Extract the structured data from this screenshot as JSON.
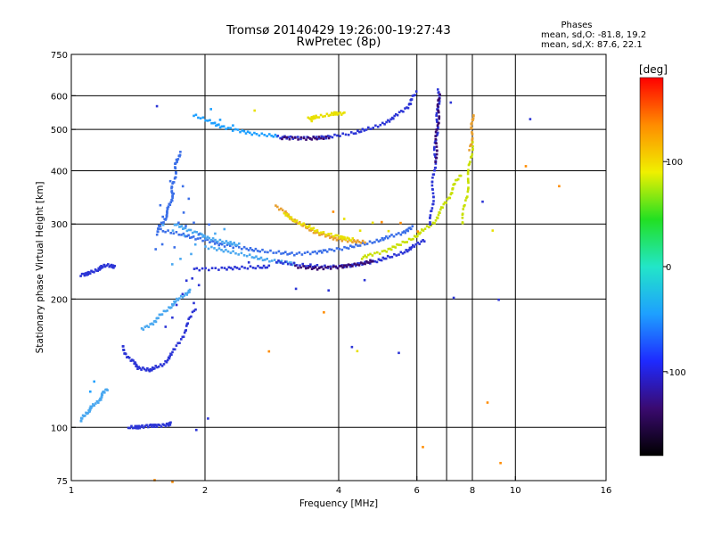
{
  "chart_data": {
    "type": "scatter",
    "title": "Tromsø 20140429 19:26:00-19:27:43",
    "subtitle": "RwPretec (8p)",
    "xlabel": "Frequency [MHz]",
    "ylabel": "Stationary phase Virtual Height [km]",
    "x_scale": "log",
    "y_scale": "log",
    "xlim": [
      1,
      16
    ],
    "ylim": [
      75,
      750
    ],
    "x_ticks": [
      1,
      2,
      4,
      6,
      8,
      10,
      16
    ],
    "y_ticks": [
      75,
      100,
      200,
      300,
      400,
      500,
      600,
      750
    ],
    "grid_x": [
      2,
      4,
      6,
      7,
      8,
      10
    ],
    "grid_y": [
      100,
      200,
      300,
      400,
      500,
      600
    ],
    "grid": true,
    "stats": {
      "heading": "Phases",
      "line_o": "mean, sd,O: -81.8, 19.2",
      "line_x": "mean, sd,X:  87.6, 22.1"
    },
    "colorbar": {
      "label": "[deg]",
      "min": -180,
      "max": 180,
      "ticks": [
        100,
        0,
        -100
      ],
      "colormap": [
        "#000000",
        "#3a0a70",
        "#1e2aff",
        "#1ea0ff",
        "#22e6c8",
        "#22e022",
        "#f0f000",
        "#ff8c00",
        "#ff0000"
      ]
    },
    "series": [
      {
        "kind": "trace",
        "color": "#2c35d6",
        "points": [
          [
            1.05,
            228
          ],
          [
            1.1,
            230
          ],
          [
            1.15,
            235
          ],
          [
            1.2,
            240
          ],
          [
            1.26,
            238
          ]
        ]
      },
      {
        "kind": "trace",
        "color": "#4aa8f0",
        "points": [
          [
            1.05,
            103
          ],
          [
            1.08,
            108
          ],
          [
            1.12,
            112
          ],
          [
            1.17,
            118
          ],
          [
            1.2,
            123
          ]
        ]
      },
      {
        "kind": "trace",
        "color": "#2c35d6",
        "points": [
          [
            1.35,
            100
          ],
          [
            1.42,
            100
          ],
          [
            1.5,
            101
          ],
          [
            1.6,
            101
          ],
          [
            1.68,
            102
          ]
        ]
      },
      {
        "kind": "trace",
        "color": "#2c35d6",
        "points": [
          [
            1.3,
            155
          ],
          [
            1.35,
            145
          ],
          [
            1.42,
            138
          ],
          [
            1.5,
            136
          ],
          [
            1.6,
            140
          ],
          [
            1.7,
            150
          ],
          [
            1.8,
            168
          ],
          [
            1.9,
            190
          ]
        ]
      },
      {
        "kind": "trace",
        "color": "#4aa8f0",
        "points": [
          [
            1.45,
            170
          ],
          [
            1.55,
            178
          ],
          [
            1.65,
            190
          ],
          [
            1.75,
            200
          ],
          [
            1.85,
            210
          ]
        ]
      },
      {
        "kind": "trace",
        "color": "#3b6fe8",
        "points": [
          [
            1.55,
            285
          ],
          [
            1.6,
            300
          ],
          [
            1.65,
            320
          ],
          [
            1.68,
            345
          ],
          [
            1.7,
            375
          ],
          [
            1.72,
            410
          ],
          [
            1.75,
            440
          ]
        ]
      },
      {
        "kind": "trace",
        "color": "#3b6fe8",
        "points": [
          [
            1.6,
            290
          ],
          [
            1.8,
            282
          ],
          [
            2.0,
            275
          ],
          [
            2.2,
            268
          ],
          [
            2.5,
            262
          ],
          [
            2.8,
            258
          ],
          [
            3.2,
            255
          ],
          [
            3.6,
            258
          ],
          [
            4.0,
            262
          ],
          [
            4.5,
            268
          ],
          [
            5.0,
            276
          ],
          [
            5.5,
            285
          ],
          [
            5.9,
            295
          ]
        ]
      },
      {
        "kind": "trace",
        "color": "#4aa8f0",
        "points": [
          [
            1.7,
            300
          ],
          [
            1.85,
            290
          ],
          [
            2.0,
            280
          ],
          [
            2.2,
            272
          ],
          [
            2.4,
            268
          ]
        ]
      },
      {
        "kind": "trace",
        "color": "#2c35d6",
        "points": [
          [
            1.9,
            235
          ],
          [
            2.2,
            236
          ],
          [
            2.5,
            237
          ],
          [
            2.8,
            238
          ]
        ]
      },
      {
        "kind": "trace",
        "color": "#4aa8f0",
        "points": [
          [
            2.0,
            265
          ],
          [
            2.3,
            258
          ],
          [
            2.6,
            250
          ],
          [
            2.9,
            245
          ],
          [
            3.2,
            242
          ]
        ]
      },
      {
        "kind": "trace",
        "color": "#2c35d6",
        "points": [
          [
            2.9,
            245
          ],
          [
            3.3,
            240
          ],
          [
            3.8,
            238
          ],
          [
            4.3,
            240
          ],
          [
            4.8,
            245
          ],
          [
            5.3,
            252
          ],
          [
            5.8,
            262
          ],
          [
            6.2,
            275
          ]
        ]
      },
      {
        "kind": "trace",
        "color": "#3a0a70",
        "points": [
          [
            3.2,
            238
          ],
          [
            3.6,
            236
          ],
          [
            4.0,
            238
          ],
          [
            4.4,
            241
          ],
          [
            4.8,
            246
          ]
        ]
      },
      {
        "kind": "trace",
        "color": "#c8e000",
        "points": [
          [
            4.5,
            250
          ],
          [
            5.0,
            258
          ],
          [
            5.5,
            268
          ],
          [
            6.0,
            282
          ],
          [
            6.5,
            300
          ],
          [
            6.9,
            330
          ],
          [
            7.2,
            360
          ],
          [
            7.5,
            390
          ]
        ]
      },
      {
        "kind": "trace",
        "color": "#e8a030",
        "points": [
          [
            2.9,
            330
          ],
          [
            3.1,
            312
          ],
          [
            3.3,
            298
          ],
          [
            3.6,
            285
          ],
          [
            3.9,
            278
          ],
          [
            4.2,
            274
          ],
          [
            4.6,
            272
          ]
        ]
      },
      {
        "kind": "trace",
        "color": "#e8e000",
        "points": [
          [
            3.0,
            318
          ],
          [
            3.3,
            300
          ],
          [
            3.6,
            288
          ],
          [
            4.0,
            280
          ],
          [
            4.3,
            276
          ]
        ]
      },
      {
        "kind": "trace",
        "color": "#1ea0ff",
        "points": [
          [
            1.9,
            540
          ],
          [
            2.1,
            515
          ],
          [
            2.3,
            500
          ],
          [
            2.6,
            488
          ],
          [
            2.9,
            482
          ]
        ]
      },
      {
        "kind": "trace",
        "color": "#2c35d6",
        "points": [
          [
            2.9,
            480
          ],
          [
            3.3,
            478
          ],
          [
            3.8,
            480
          ],
          [
            4.3,
            490
          ],
          [
            4.8,
            505
          ],
          [
            5.3,
            530
          ],
          [
            5.7,
            565
          ],
          [
            6.0,
            610
          ]
        ]
      },
      {
        "kind": "trace",
        "color": "#3a0a70",
        "points": [
          [
            3.0,
            478
          ],
          [
            3.4,
            476
          ],
          [
            3.8,
            478
          ]
        ]
      },
      {
        "kind": "trace",
        "color": "#e8e000",
        "points": [
          [
            3.4,
            530
          ],
          [
            3.6,
            535
          ],
          [
            3.9,
            545
          ],
          [
            4.1,
            545
          ]
        ]
      },
      {
        "kind": "trace",
        "color": "#2c35d6",
        "points": [
          [
            6.45,
            300
          ],
          [
            6.5,
            340
          ],
          [
            6.55,
            390
          ],
          [
            6.6,
            440
          ],
          [
            6.65,
            500
          ],
          [
            6.7,
            560
          ],
          [
            6.72,
            620
          ]
        ]
      },
      {
        "kind": "trace",
        "color": "#3a0a70",
        "points": [
          [
            6.6,
            420
          ],
          [
            6.65,
            480
          ],
          [
            6.7,
            540
          ],
          [
            6.75,
            600
          ]
        ]
      },
      {
        "kind": "trace",
        "color": "#c8e000",
        "points": [
          [
            7.6,
            300
          ],
          [
            7.75,
            350
          ],
          [
            7.9,
            410
          ],
          [
            8.0,
            470
          ]
        ]
      },
      {
        "kind": "trace",
        "color": "#e8a030",
        "points": [
          [
            7.9,
            450
          ],
          [
            8.0,
            500
          ],
          [
            8.0,
            540
          ]
        ]
      },
      {
        "kind": "scatter",
        "color": "#3b6fe8",
        "points": [
          [
            1.6,
            310
          ],
          [
            1.65,
            330
          ],
          [
            1.7,
            355
          ],
          [
            1.75,
            300
          ],
          [
            1.8,
            320
          ],
          [
            1.85,
            345
          ],
          [
            1.9,
            300
          ],
          [
            1.95,
            285
          ],
          [
            2.05,
            300
          ],
          [
            1.55,
            260
          ],
          [
            1.6,
            270
          ],
          [
            1.7,
            265
          ],
          [
            1.8,
            295
          ],
          [
            1.66,
            380
          ],
          [
            1.72,
            420
          ],
          [
            1.58,
            330
          ],
          [
            1.78,
            370
          ]
        ]
      },
      {
        "kind": "scatter",
        "color": "#4aa8f0",
        "points": [
          [
            1.62,
            300
          ],
          [
            1.7,
            290
          ],
          [
            1.8,
            280
          ],
          [
            1.9,
            270
          ],
          [
            2.1,
            285
          ],
          [
            2.2,
            290
          ],
          [
            1.75,
            250
          ],
          [
            1.85,
            255
          ],
          [
            1.68,
            240
          ]
        ]
      },
      {
        "kind": "scatter",
        "color": "#2c35d6",
        "points": [
          [
            1.62,
            172
          ],
          [
            1.68,
            180
          ],
          [
            1.72,
            195
          ],
          [
            1.78,
            205
          ],
          [
            1.82,
            220
          ],
          [
            1.88,
            225
          ],
          [
            1.95,
            215
          ],
          [
            1.9,
            195
          ]
        ]
      },
      {
        "kind": "scatter",
        "color": "#ff8c00",
        "points": [
          [
            1.55,
            75
          ],
          [
            1.7,
            75
          ],
          [
            2.8,
            150
          ],
          [
            3.9,
            320
          ],
          [
            5.0,
            305
          ],
          [
            5.5,
            300
          ],
          [
            6.0,
            288
          ],
          [
            8.6,
            115
          ],
          [
            9.2,
            82
          ],
          [
            10.5,
            410
          ],
          [
            12.5,
            370
          ],
          [
            3.7,
            185
          ],
          [
            6.2,
            90
          ]
        ]
      },
      {
        "kind": "scatter",
        "color": "#2c35d6",
        "points": [
          [
            1.55,
            570
          ],
          [
            1.9,
            98
          ],
          [
            2.02,
            105
          ],
          [
            2.5,
            245
          ],
          [
            3.2,
            210
          ],
          [
            3.8,
            210
          ],
          [
            4.3,
            155
          ],
          [
            4.6,
            220
          ],
          [
            5.5,
            150
          ],
          [
            7.2,
            580
          ],
          [
            7.3,
            200
          ],
          [
            9.2,
            200
          ],
          [
            10.8,
            530
          ],
          [
            5.8,
            570
          ],
          [
            8.4,
            340
          ]
        ]
      },
      {
        "kind": "scatter",
        "color": "#e8e000",
        "points": [
          [
            2.6,
            550
          ],
          [
            3.5,
            525
          ],
          [
            4.5,
            290
          ],
          [
            4.8,
            300
          ],
          [
            5.2,
            290
          ],
          [
            8.9,
            290
          ],
          [
            4.4,
            150
          ],
          [
            4.1,
            310
          ]
        ]
      },
      {
        "kind": "scatter",
        "color": "#1ea0ff",
        "points": [
          [
            1.1,
            122
          ],
          [
            1.12,
            128
          ],
          [
            2.05,
            555
          ],
          [
            2.15,
            530
          ],
          [
            2.3,
            510
          ]
        ]
      }
    ]
  }
}
